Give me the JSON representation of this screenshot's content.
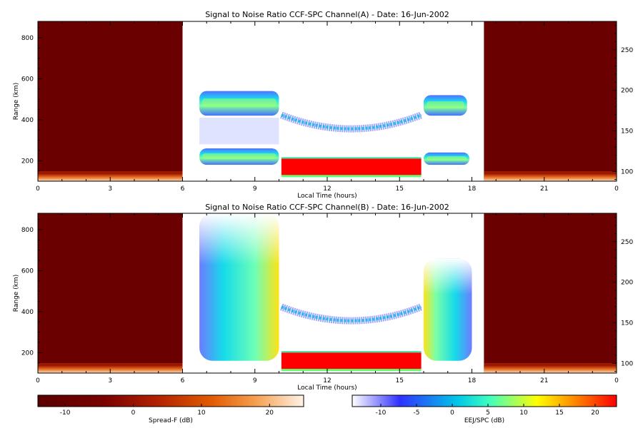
{
  "chart_data": [
    {
      "type": "heatmap",
      "title": "Signal to Noise Ratio CCF-SPC Channel(A) - Date: 16-Jun-2002",
      "xlabel": "Local Time (hours)",
      "ylabel": "Range (km)",
      "xlim": [
        0,
        24
      ],
      "ylim": [
        100,
        880
      ],
      "x_ticks": [
        "0",
        "3",
        "6",
        "9",
        "12",
        "15",
        "18",
        "21",
        "0"
      ],
      "y_ticks": [
        "200",
        "400",
        "600",
        "800"
      ],
      "y2_ticks": [
        "100",
        "150",
        "200",
        "250"
      ],
      "y2lim": [
        88,
        285
      ],
      "regions": [
        {
          "name": "Spread-F",
          "x": [
            0,
            6
          ],
          "range_km": [
            100,
            880
          ]
        },
        {
          "name": "Spread-F",
          "x": [
            18.5,
            24
          ],
          "range_km": [
            100,
            880
          ]
        },
        {
          "name": "EEJ/SPC",
          "x": [
            6,
            18.5
          ],
          "range_km": [
            100,
            880
          ]
        }
      ],
      "features": [
        {
          "label": "F-layer band",
          "x": [
            6.7,
            10
          ],
          "range_km": [
            420,
            540
          ]
        },
        {
          "label": "F-layer band",
          "x": [
            16,
            17.8
          ],
          "range_km": [
            420,
            520
          ]
        },
        {
          "label": "lower band",
          "x": [
            6.7,
            10
          ],
          "range_km": [
            180,
            260
          ]
        },
        {
          "label": "lower band",
          "x": [
            16,
            17.9
          ],
          "range_km": [
            180,
            240
          ]
        },
        {
          "label": "valley echoes",
          "x": [
            10.1,
            15.9
          ],
          "range_km": [
            330,
            430
          ]
        },
        {
          "label": "EEJ",
          "x": [
            10.1,
            15.9
          ],
          "range_km": [
            130,
            210
          ]
        }
      ]
    },
    {
      "type": "heatmap",
      "title": "Signal to Noise Ratio CCF-SPC Channel(B) - Date: 16-Jun-2002",
      "xlabel": "Local Time (hours)",
      "ylabel": "Range (km)",
      "xlim": [
        0,
        24
      ],
      "ylim": [
        100,
        880
      ],
      "x_ticks": [
        "0",
        "3",
        "6",
        "9",
        "12",
        "15",
        "18",
        "21",
        "0"
      ],
      "y_ticks": [
        "200",
        "400",
        "600",
        "800"
      ],
      "y2_ticks": [
        "100",
        "150",
        "200",
        "250"
      ],
      "y2lim": [
        88,
        285
      ],
      "regions": [
        {
          "name": "Spread-F",
          "x": [
            0,
            6
          ],
          "range_km": [
            100,
            880
          ]
        },
        {
          "name": "Spread-F",
          "x": [
            18.5,
            24
          ],
          "range_km": [
            100,
            880
          ]
        },
        {
          "name": "EEJ/SPC",
          "x": [
            6,
            18.5
          ],
          "range_km": [
            100,
            880
          ]
        }
      ],
      "features": [
        {
          "label": "F-region",
          "x": [
            6.7,
            10
          ],
          "range_km": [
            160,
            880
          ]
        },
        {
          "label": "F-region",
          "x": [
            16,
            18
          ],
          "range_km": [
            160,
            660
          ]
        },
        {
          "label": "valley echoes",
          "x": [
            10.1,
            15.9
          ],
          "range_km": [
            330,
            430
          ]
        },
        {
          "label": "EEJ",
          "x": [
            10.1,
            15.9
          ],
          "range_km": [
            120,
            200
          ]
        }
      ]
    }
  ],
  "colorbars": [
    {
      "label": "Spread-F (dB)",
      "ticks": [
        "-10",
        "0",
        "10",
        "20"
      ],
      "range": [
        -14,
        25
      ],
      "colors": [
        "#5a0000",
        "#7a0000",
        "#b22200",
        "#e05a00",
        "#f5a050",
        "#fff3e8"
      ]
    },
    {
      "label": "EEJ/SPC (dB)",
      "ticks": [
        "-10",
        "-5",
        "0",
        "5",
        "10",
        "15",
        "20"
      ],
      "range": [
        -14,
        23
      ],
      "colors": [
        "#ffffff",
        "#3030ff",
        "#00c8e6",
        "#40ffc0",
        "#ffff00",
        "#ff8000",
        "#ff0000"
      ]
    }
  ],
  "colors": {
    "spreadf_bg": "#6b0000",
    "eej_red": "#ff0000"
  }
}
